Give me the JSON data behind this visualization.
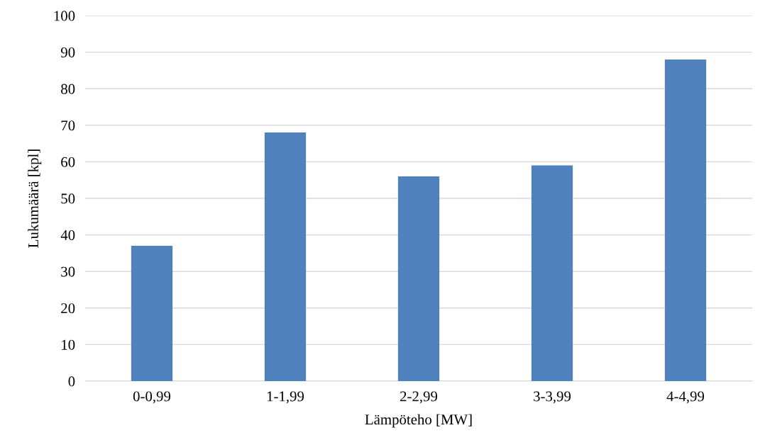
{
  "chart_data": {
    "type": "bar",
    "xlabel": "Lämpöteho [MW]",
    "ylabel": "Lukumäärä [kpl]",
    "categories": [
      "0-0,99",
      "1-1,99",
      "2-2,99",
      "3-3,99",
      "4-4,99"
    ],
    "values": [
      37,
      68,
      56,
      59,
      88
    ],
    "color": "#4f81bd",
    "ylim": [
      0,
      100
    ],
    "yticks": [
      0,
      10,
      20,
      30,
      40,
      50,
      60,
      70,
      80,
      90,
      100
    ],
    "grid": "y",
    "legend": false
  }
}
